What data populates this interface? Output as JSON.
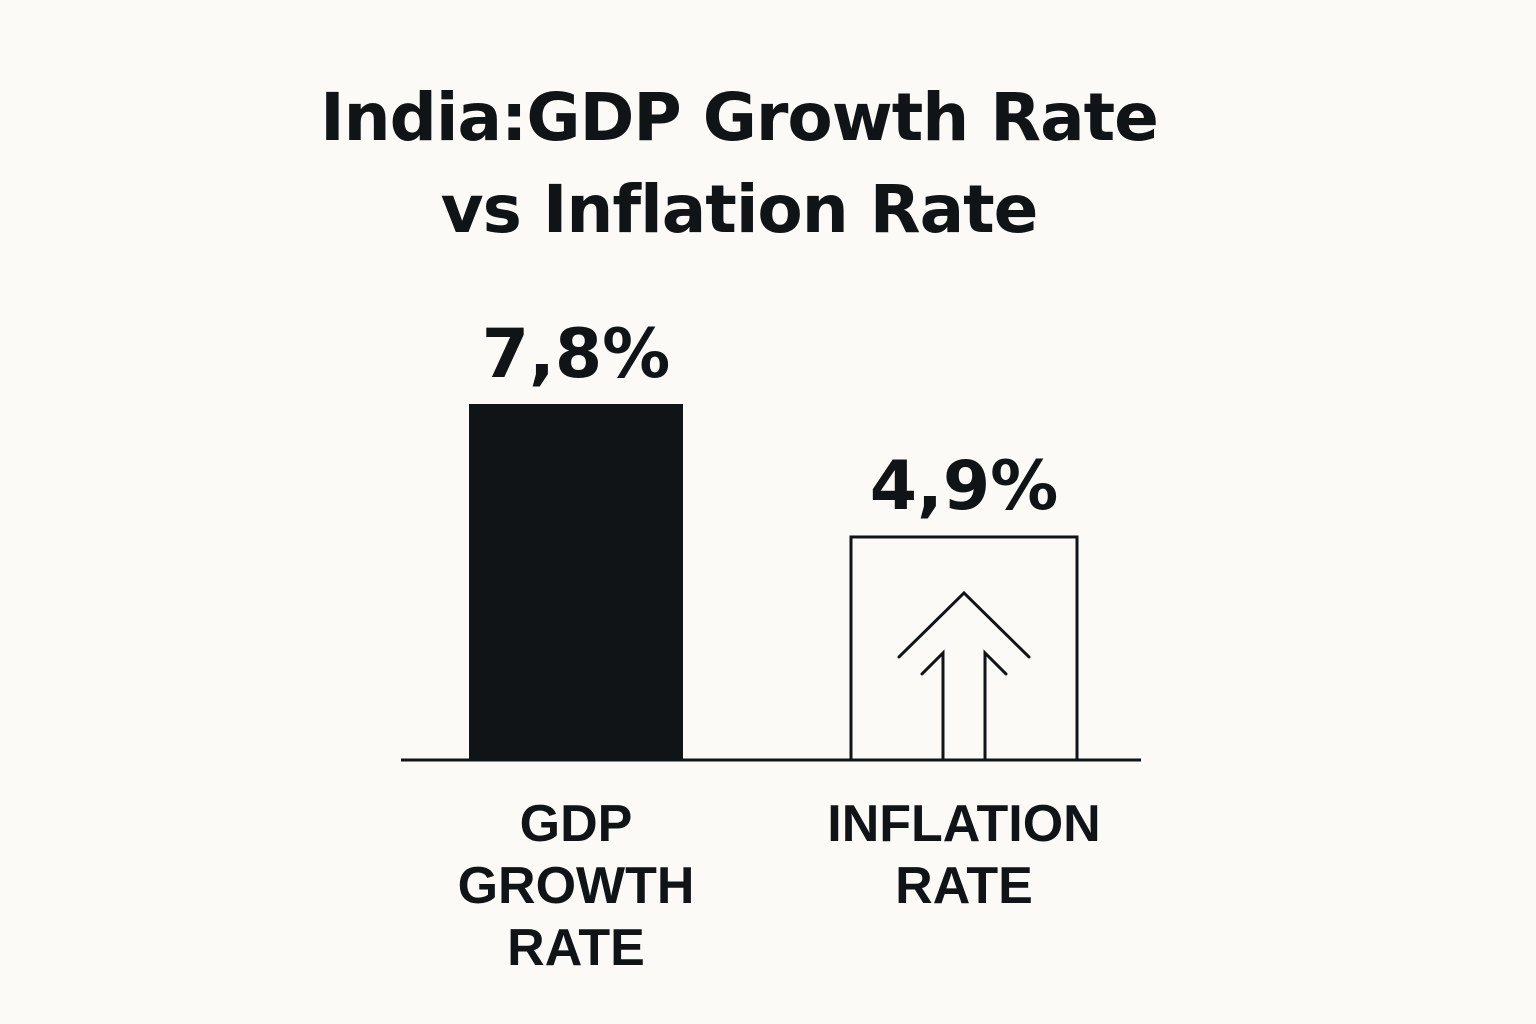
{
  "chart_data": {
    "type": "bar",
    "title_lines": [
      "India:GDP Growth Rate",
      "vs Inflation Rate"
    ],
    "categories": [
      [
        "GDP",
        "GROWTH",
        "RATE"
      ],
      [
        "INFLATION",
        "RATE"
      ]
    ],
    "values": [
      7.8,
      4.9
    ],
    "value_labels": [
      "7,8%",
      "4,9%"
    ],
    "bar_styles": [
      "filled",
      "outline-with-up-arrows"
    ],
    "colors": {
      "bar_fill": "#111417",
      "outline": "#111417",
      "background": "#fbfaf7"
    },
    "ylim": [
      0,
      7.8
    ],
    "grid": false,
    "legend": "none"
  }
}
